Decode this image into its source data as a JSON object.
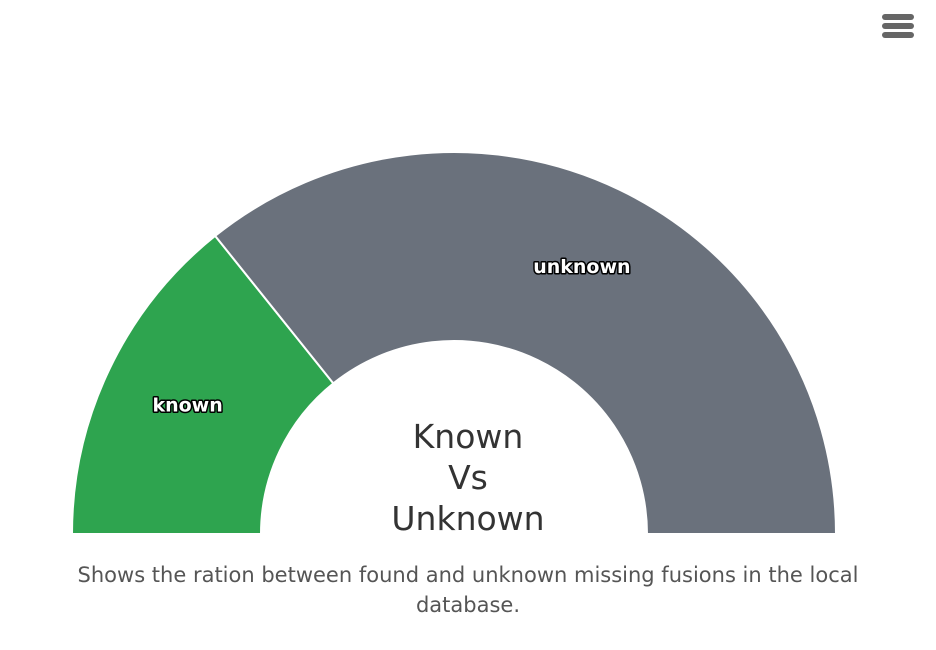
{
  "toolbar": {
    "menu_icon": "hamburger-menu-icon"
  },
  "chart_data": {
    "type": "pie",
    "variant": "semi-circle-donut",
    "title": "Known Vs Unknown",
    "title_lines": [
      "Known",
      "Vs",
      "Unknown"
    ],
    "caption": "Shows the ration between found and unknown missing fusions in the local database.",
    "slices": [
      {
        "label": "known",
        "value": 28.5,
        "color": "#2ea44f"
      },
      {
        "label": "unknown",
        "value": 71.5,
        "color": "#6a717c"
      }
    ]
  }
}
